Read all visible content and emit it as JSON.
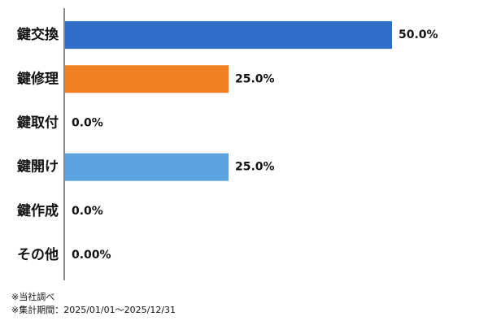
{
  "chart_data": {
    "type": "bar",
    "orientation": "horizontal",
    "categories": [
      "鍵交換",
      "鍵修理",
      "鍵取付",
      "鍵開け",
      "鍵作成",
      "その他"
    ],
    "values": [
      50,
      25,
      0,
      25,
      0,
      0
    ],
    "value_labels": [
      "50.0%",
      "25.0%",
      "0.0%",
      "25.0%",
      "0.0%",
      "0.00%"
    ],
    "colors": [
      "#2f6fca",
      "#f28023",
      null,
      "#5ba3e0",
      null,
      null
    ],
    "notes": [
      "※当社調べ",
      "※集計期間：2025/01/01〜2025/12/31"
    ]
  }
}
